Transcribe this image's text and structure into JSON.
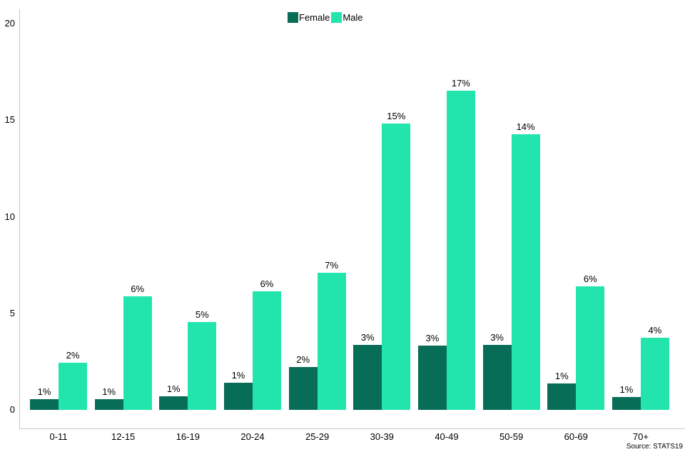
{
  "chart_data": {
    "type": "bar",
    "title": "",
    "xlabel": "",
    "ylabel": "",
    "categories": [
      "0-11",
      "12-15",
      "16-19",
      "20-24",
      "25-29",
      "30-39",
      "40-49",
      "50-59",
      "60-69",
      "70+"
    ],
    "series": [
      {
        "name": "Female",
        "color": "#076D57",
        "values": [
          0.55,
          0.55,
          0.7,
          1.4,
          2.2,
          3.36,
          3.33,
          3.36,
          1.37,
          0.67
        ],
        "labels": [
          "1%",
          "1%",
          "1%",
          "1%",
          "2%",
          "3%",
          "3%",
          "3%",
          "1%",
          "1%"
        ]
      },
      {
        "name": "Male",
        "color": "#22E5AE",
        "values": [
          2.44,
          5.88,
          4.55,
          6.14,
          7.1,
          14.82,
          16.52,
          14.27,
          6.4,
          3.73
        ],
        "labels": [
          "2%",
          "6%",
          "5%",
          "6%",
          "7%",
          "15%",
          "17%",
          "14%",
          "6%",
          "4%"
        ]
      }
    ],
    "yticks": [
      0,
      5,
      10,
      15,
      20
    ],
    "ylim": [
      -1,
      20.75
    ],
    "grid": false,
    "legend_position": "top-center",
    "data_labels": true
  },
  "source": {
    "text": "Source: STATS19"
  },
  "colors": {
    "axis": "#c9c9c9",
    "label_text": "#000000"
  }
}
